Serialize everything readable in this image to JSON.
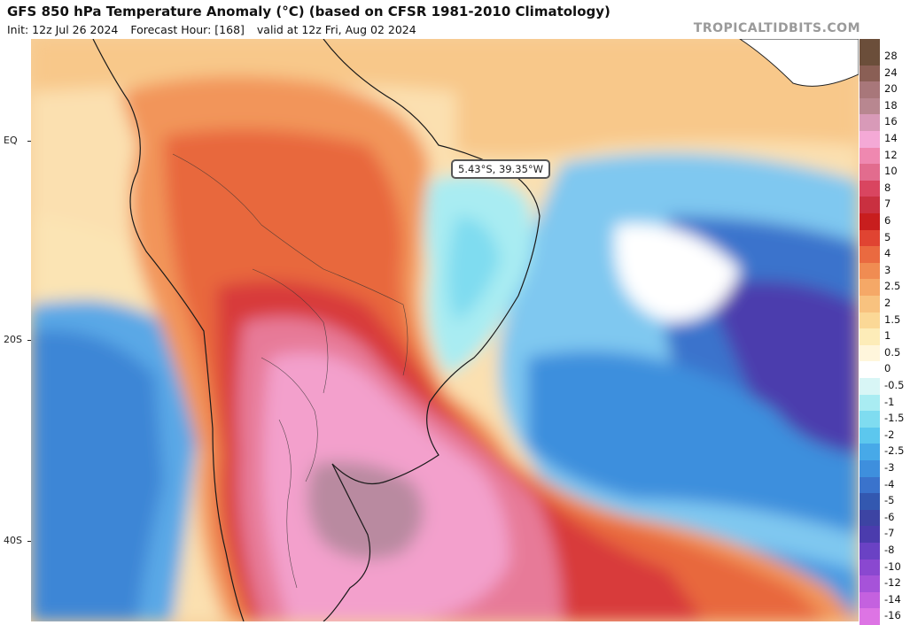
{
  "header": {
    "title": "GFS 850 hPa Temperature Anomaly (°C) (based on CFSR 1981-2010 Climatology)",
    "init": "Init: 12z Jul 26 2024",
    "forecast_hour": "Forecast Hour: [168]",
    "valid": "valid at 12z Fri, Aug 02 2024",
    "source": "TROPICALTIDBITS.COM"
  },
  "lat_labels": [
    "EQ",
    "20S",
    "40S"
  ],
  "tooltip": "5.43°S, 39.35°W",
  "colorbar": {
    "labels": [
      "28",
      "24",
      "20",
      "18",
      "16",
      "14",
      "12",
      "10",
      "8",
      "7",
      "6",
      "5",
      "4",
      "3",
      "2.5",
      "2",
      "1.5",
      "1",
      "0.5",
      "0",
      "-0.5",
      "-1",
      "-1.5",
      "-2",
      "-2.5",
      "-3",
      "-4",
      "-5",
      "-6",
      "-7",
      "-8",
      "-10",
      "-12",
      "-14",
      "-16"
    ],
    "colors": [
      "#6b4e3a",
      "#8a5f55",
      "#a8777a",
      "#b88790",
      "#d89ab8",
      "#f4a9d6",
      "#ef88b0",
      "#e26c8e",
      "#d94560",
      "#c93040",
      "#c81e1e",
      "#e04432",
      "#ea6a40",
      "#f08c52",
      "#f5a867",
      "#f8c27f",
      "#fbd896",
      "#fdecb8",
      "#fff6dc",
      "#ffffff",
      "#d8f6f6",
      "#a9ecf2",
      "#7fdcf0",
      "#5cc7ee",
      "#47a9e8",
      "#3e8fdd",
      "#3a73cc",
      "#3358b0",
      "#3d44a3",
      "#4b3cad",
      "#6a42c4",
      "#8a48d0",
      "#a653d9",
      "#c461df",
      "#dd74e4"
    ]
  }
}
